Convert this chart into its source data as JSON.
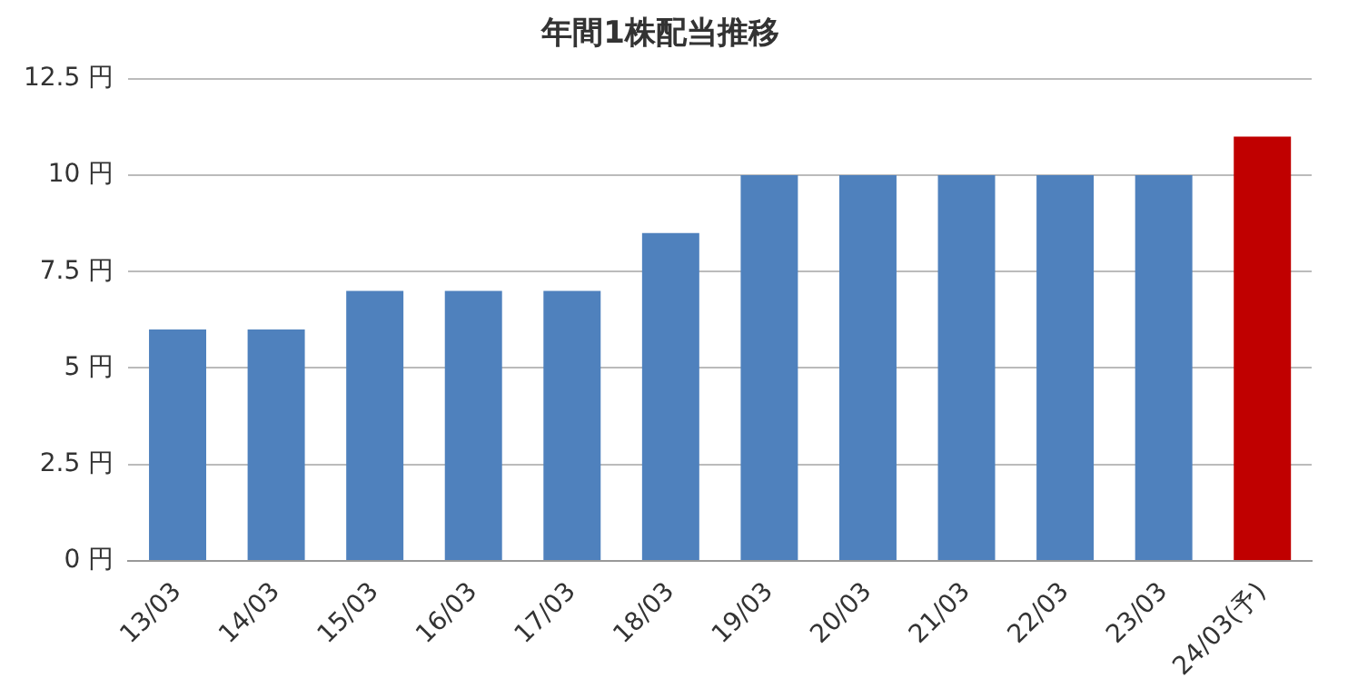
{
  "chart_data": {
    "type": "bar",
    "title": "年間1株配当推移",
    "categories": [
      "13/03",
      "14/03",
      "15/03",
      "16/03",
      "17/03",
      "18/03",
      "19/03",
      "20/03",
      "21/03",
      "22/03",
      "23/03",
      "24/03(予)"
    ],
    "values": [
      6,
      6,
      7,
      7,
      7,
      8.5,
      10,
      10,
      10,
      10,
      10,
      11
    ],
    "colors": [
      "#4f81bd",
      "#4f81bd",
      "#4f81bd",
      "#4f81bd",
      "#4f81bd",
      "#4f81bd",
      "#4f81bd",
      "#4f81bd",
      "#4f81bd",
      "#4f81bd",
      "#4f81bd",
      "#c00000"
    ],
    "ylim": [
      0,
      12.5
    ],
    "yticks": [
      {
        "value": 0,
        "label": "0 円"
      },
      {
        "value": 2.5,
        "label": "2.5 円"
      },
      {
        "value": 5,
        "label": "5 円"
      },
      {
        "value": 7.5,
        "label": "7.5 円"
      },
      {
        "value": 10,
        "label": "10 円"
      },
      {
        "value": 12.5,
        "label": "12.5 円"
      }
    ],
    "grid": "y",
    "legend": false
  }
}
